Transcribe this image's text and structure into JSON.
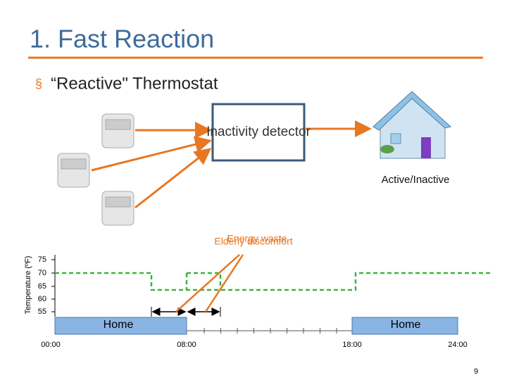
{
  "title": "1. Fast Reaction",
  "bullet": {
    "marker": "§",
    "text": "“Reactive\" Thermostat"
  },
  "detector": {
    "label": "Inactivity detector"
  },
  "house": {
    "label": "Active/Inactive"
  },
  "timeline": {
    "y_axis_label": "Temperature (ºF)",
    "y_ticks": [
      "75",
      "70",
      "65",
      "60",
      "55"
    ],
    "x_ticks": [
      "00:00",
      "08:00",
      "18:00",
      "24:00"
    ],
    "periods": [
      "Home",
      "Home"
    ],
    "annotations": [
      "Energy waste",
      "Elderly discomfort"
    ]
  },
  "page_number": "9"
}
